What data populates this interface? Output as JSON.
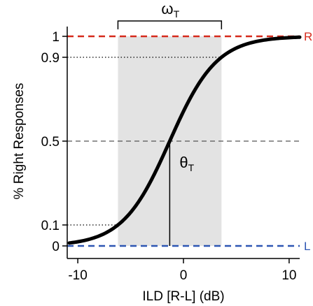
{
  "chart_data": {
    "type": "line",
    "title": "",
    "xlabel": "ILD [R-L] (dB)",
    "ylabel": "% Right Responses",
    "xlim": [
      -11,
      11
    ],
    "ylim": [
      0,
      1
    ],
    "x_ticks": [
      {
        "value": -10,
        "label": "-10"
      },
      {
        "value": 0,
        "label": "0"
      },
      {
        "value": 10,
        "label": "10"
      }
    ],
    "y_ticks": [
      {
        "value": 0,
        "label": "0"
      },
      {
        "value": 0.1,
        "label": "0.1"
      },
      {
        "value": 0.5,
        "label": "0.5"
      },
      {
        "value": 0.9,
        "label": "0.9"
      },
      {
        "value": 1,
        "label": "1"
      }
    ],
    "series": [
      {
        "function": "logistic",
        "threshold": -1.3,
        "width_10_90": 9.8,
        "x_range": [
          -10.8,
          11
        ],
        "color": "#000000"
      }
    ],
    "reference_lines": [
      {
        "axis": "y",
        "value": 1,
        "style": "dashed",
        "color": "#d62a1c",
        "label": "R"
      },
      {
        "axis": "y",
        "value": 0,
        "style": "dashed",
        "color": "#2d56b3",
        "label": "L"
      },
      {
        "axis": "y",
        "value": 0.5,
        "style": "dashed",
        "color": "#555555",
        "label": ""
      },
      {
        "axis": "y",
        "value": 0.9,
        "style": "dotted",
        "color": "#000000",
        "x_to": 3.6,
        "label": ""
      },
      {
        "axis": "y",
        "value": 0.1,
        "style": "dotted",
        "color": "#000000",
        "x_to": -6.2,
        "label": ""
      }
    ],
    "threshold_line": {
      "x": -1.3,
      "y_top": 0.5
    },
    "shaded_region": {
      "x_from": -6.2,
      "x_to": 3.6,
      "color": "#e3e3e3"
    },
    "annotations": {
      "omega": {
        "main": "ω",
        "sub": "T"
      },
      "theta": {
        "main": "θ",
        "sub": "T"
      }
    },
    "grid": false
  }
}
